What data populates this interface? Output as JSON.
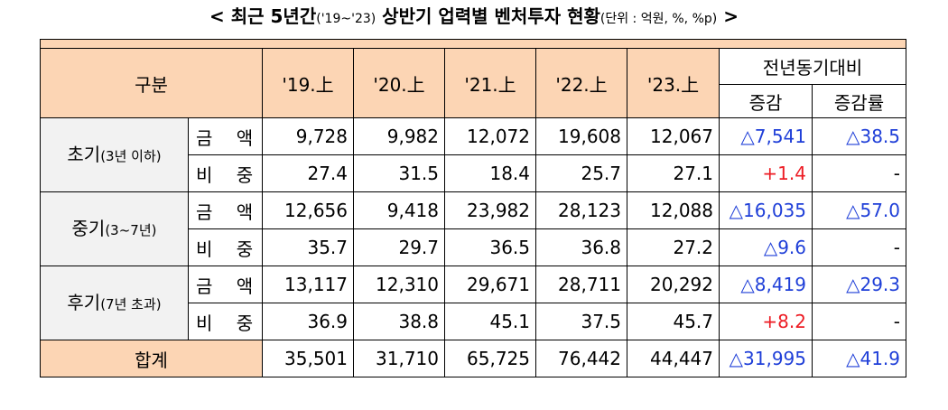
{
  "title": {
    "prefix": "< ",
    "main": "최근 5년간",
    "period": "('19~'23)",
    "subject": " 상반기 업력별 벤처투자 현황",
    "unit": "(단위 : 억원, %, %p)",
    "suffix": " >"
  },
  "header": {
    "category": "구분",
    "years": [
      "'19.上",
      "'20.上",
      "'21.上",
      "'22.上",
      "'23.上"
    ],
    "yoy": "전년동기대비",
    "change": "증감",
    "rate": "증감률"
  },
  "groups": [
    {
      "label": "초기",
      "label_detail": "(3년 이하)",
      "rows": [
        {
          "kind": "금 액",
          "values": [
            "9,728",
            "9,982",
            "12,072",
            "19,608",
            "12,067"
          ],
          "change": "△7,541",
          "change_dir": "dec",
          "rate": "△38.5",
          "rate_dir": "dec"
        },
        {
          "kind": "비 중",
          "values": [
            "27.4",
            "31.5",
            "18.4",
            "25.7",
            "27.1"
          ],
          "change": "+1.4",
          "change_dir": "inc",
          "rate": "-",
          "rate_dir": "none"
        }
      ]
    },
    {
      "label": "중기",
      "label_detail": "(3~7년)",
      "rows": [
        {
          "kind": "금 액",
          "values": [
            "12,656",
            "9,418",
            "23,982",
            "28,123",
            "12,088"
          ],
          "change": "△16,035",
          "change_dir": "dec",
          "rate": "△57.0",
          "rate_dir": "dec"
        },
        {
          "kind": "비 중",
          "values": [
            "35.7",
            "29.7",
            "36.5",
            "36.8",
            "27.2"
          ],
          "change": "△9.6",
          "change_dir": "dec",
          "rate": "-",
          "rate_dir": "none"
        }
      ]
    },
    {
      "label": "후기",
      "label_detail": "(7년 초과)",
      "rows": [
        {
          "kind": "금 액",
          "values": [
            "13,117",
            "12,310",
            "29,671",
            "28,711",
            "20,292"
          ],
          "change": "△8,419",
          "change_dir": "dec",
          "rate": "△29.3",
          "rate_dir": "dec"
        },
        {
          "kind": "비 중",
          "values": [
            "36.9",
            "38.8",
            "45.1",
            "37.5",
            "45.7"
          ],
          "change": "+8.2",
          "change_dir": "inc",
          "rate": "-",
          "rate_dir": "none"
        }
      ]
    }
  ],
  "total": {
    "label": "합계",
    "values": [
      "35,501",
      "31,710",
      "65,725",
      "76,442",
      "44,447"
    ],
    "change": "△31,995",
    "rate": "△41.9"
  },
  "colors": {
    "header_bg": "#fcd5b4",
    "category_bg": "#f2f2f2",
    "increase": "#ed1c24",
    "decrease": "#1f3fd8"
  }
}
